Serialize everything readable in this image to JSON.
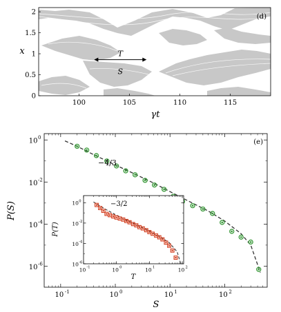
{
  "chart_data": [
    {
      "type": "heatmap",
      "panel_label": "(d)",
      "xlabel": "γt",
      "ylabel": "x",
      "xlim": [
        96,
        119
      ],
      "ylim": [
        0,
        2.1
      ],
      "xticks": [
        100,
        105,
        110,
        115
      ],
      "yticks": [
        0,
        0.5,
        1,
        1.5,
        2
      ],
      "ytick_labels": [
        "0",
        "0.5",
        "1",
        "1.5",
        "2"
      ],
      "fill_color": "#c8c8c8",
      "annotation_T": "T",
      "annotation_S": "S",
      "arrow_T": {
        "x_from": 101.5,
        "x_to": 106.7,
        "y": 0.86
      }
    },
    {
      "type": "scatter",
      "panel_label": "(e)",
      "xlabel": "S",
      "ylabel": "P(S)",
      "xscale": "log",
      "yscale": "log",
      "xlim": [
        0.05,
        600
      ],
      "ylim": [
        1e-07,
        2
      ],
      "xticks": [
        0.1,
        1,
        10,
        100
      ],
      "xtick_exp": [
        "-1",
        "0",
        "1",
        "2"
      ],
      "yticks": [
        1e-06,
        0.0001,
        0.01,
        1
      ],
      "ytick_exp": [
        "-6",
        "-4",
        "-2",
        "0"
      ],
      "marker_color": "#3a9a3a",
      "slope_label": "−4/3",
      "series": [
        {
          "x": [
            0.2,
            0.3,
            0.45,
            0.7,
            1.05,
            1.55,
            2.3,
            3.5,
            5.2,
            7.8,
            11.5,
            17,
            26,
            40,
            60,
            90,
            135,
            200,
            300,
            420
          ],
          "y": [
            0.5,
            0.33,
            0.18,
            0.1,
            0.058,
            0.034,
            0.022,
            0.012,
            0.0072,
            0.0045,
            0.0021,
            0.0012,
            0.00075,
            0.00052,
            0.00032,
            0.00012,
            4.5e-05,
            2.4e-05,
            1.4e-05,
            7e-07
          ]
        }
      ],
      "fit": {
        "x": [
          0.12,
          0.2,
          0.4,
          1,
          2,
          5,
          10,
          20,
          50,
          100,
          200,
          300,
          450
        ],
        "y": [
          0.9,
          0.5,
          0.2,
          0.065,
          0.028,
          0.009,
          0.0035,
          0.0014,
          0.00042,
          0.00014,
          3.5e-05,
          1e-05,
          5e-07
        ]
      }
    },
    {
      "type": "scatter",
      "xlabel": "T",
      "ylabel": "P(T)",
      "xscale": "log",
      "yscale": "log",
      "xlim": [
        0.1,
        110
      ],
      "ylim": [
        1e-06,
        5
      ],
      "xticks": [
        0.1,
        1,
        10,
        100
      ],
      "xtick_exp": [
        "-1",
        "0",
        "1",
        "2"
      ],
      "yticks": [
        1e-06,
        0.0001,
        0.01,
        1
      ],
      "ytick_exp": [
        "-6",
        "-4",
        "-2",
        "0"
      ],
      "marker_color": "#d23a1a",
      "slope_label": "−3/2",
      "series": [
        {
          "x": [
            0.25,
            0.32,
            0.4,
            0.5,
            0.63,
            0.8,
            1.0,
            1.26,
            1.6,
            2.0,
            2.5,
            3.2,
            4.0,
            5.0,
            6.3,
            8.0,
            10,
            12.6,
            16,
            20,
            25,
            32,
            40,
            50,
            63
          ],
          "y": [
            0.6,
            0.3,
            0.16,
            0.08,
            0.06,
            0.045,
            0.035,
            0.028,
            0.022,
            0.016,
            0.012,
            0.008,
            0.006,
            0.004,
            0.003,
            0.002,
            0.0013,
            0.0009,
            0.0006,
            0.0004,
            0.00025,
            0.00012,
            6e-05,
            2e-05,
            4e-06
          ]
        }
      ],
      "fit": {
        "x": [
          0.2,
          0.5,
          1,
          2,
          5,
          10,
          20,
          40,
          70,
          90
        ],
        "y": [
          1.2,
          0.2,
          0.06,
          0.02,
          0.005,
          0.0016,
          0.0005,
          0.00012,
          1.5e-05,
          1e-06
        ]
      }
    }
  ]
}
